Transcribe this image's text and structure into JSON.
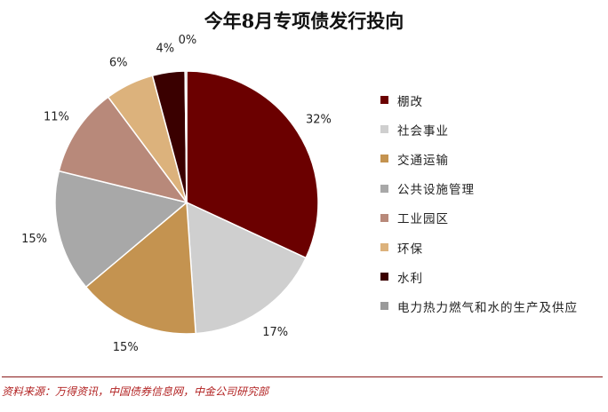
{
  "chart_data": {
    "type": "pie",
    "title": "今年8月专项债发行投向",
    "categories": [
      "棚改",
      "社会事业",
      "交通运输",
      "公共设施管理",
      "工业园区",
      "环保",
      "水利",
      "电力热力燃气和水的生产及供应"
    ],
    "values": [
      32,
      17,
      15,
      15,
      11,
      6,
      4,
      0
    ],
    "labels": [
      "32%",
      "17%",
      "15%",
      "15%",
      "11%",
      "6%",
      "4%",
      "0%"
    ],
    "colors": [
      "#6b0000",
      "#cfcfcf",
      "#c49350",
      "#a8a8a8",
      "#b8897a",
      "#dcb27c",
      "#3a0000",
      "#9a9a9a"
    ],
    "legend_position": "right"
  },
  "source": "资料来源：万得资讯，中国债券信息网，中金公司研究部"
}
